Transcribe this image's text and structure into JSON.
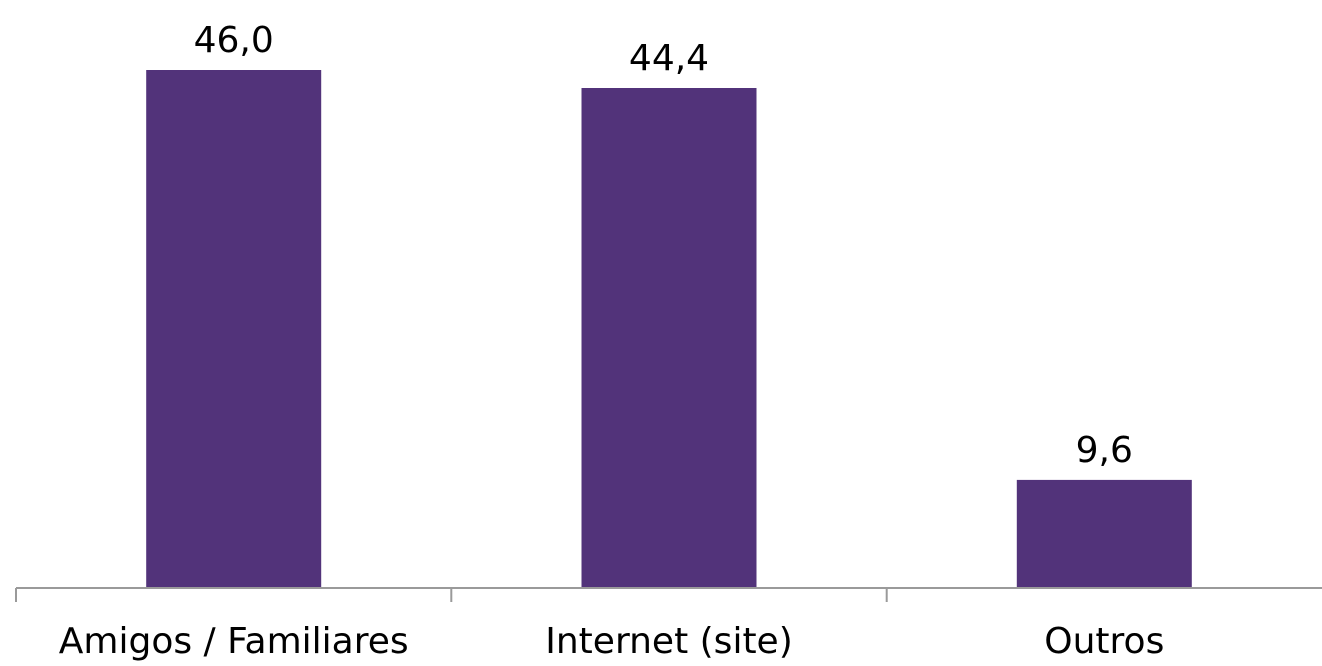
{
  "chart_data": {
    "type": "bar",
    "categories": [
      "Amigos / Familiares",
      "Internet (site)",
      "Outros"
    ],
    "values": [
      46.0,
      44.4,
      9.6
    ],
    "value_labels": [
      "46,0",
      "44,4",
      "9,6"
    ],
    "title": "",
    "xlabel": "",
    "ylabel": "",
    "ylim": [
      0,
      50
    ],
    "grid": false,
    "legend": "none",
    "bar_color": "#52337a",
    "axis_color": "#9a9a9a"
  }
}
